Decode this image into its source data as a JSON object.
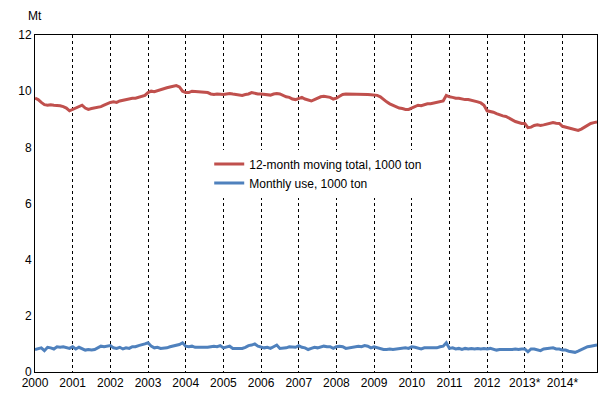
{
  "chart_data": {
    "type": "line",
    "y_label": "Mt",
    "categories": [
      "2000",
      null,
      null,
      null,
      null,
      null,
      null,
      null,
      null,
      null,
      null,
      null,
      "2001",
      null,
      null,
      null,
      null,
      null,
      null,
      null,
      null,
      null,
      null,
      null,
      "2002",
      null,
      null,
      null,
      null,
      null,
      null,
      null,
      null,
      null,
      null,
      null,
      "2003",
      null,
      null,
      null,
      null,
      null,
      null,
      null,
      null,
      null,
      null,
      null,
      "2004",
      null,
      null,
      null,
      null,
      null,
      null,
      null,
      null,
      null,
      null,
      null,
      "2005",
      null,
      null,
      null,
      null,
      null,
      null,
      null,
      null,
      null,
      null,
      null,
      "2006",
      null,
      null,
      null,
      null,
      null,
      null,
      null,
      null,
      null,
      null,
      null,
      "2007",
      null,
      null,
      null,
      null,
      null,
      null,
      null,
      null,
      null,
      null,
      null,
      "2008",
      null,
      null,
      null,
      null,
      null,
      null,
      null,
      null,
      null,
      null,
      null,
      "2009",
      null,
      null,
      null,
      null,
      null,
      null,
      null,
      null,
      null,
      null,
      null,
      "2010",
      null,
      null,
      null,
      null,
      null,
      null,
      null,
      null,
      null,
      null,
      null,
      "2011",
      null,
      null,
      null,
      null,
      null,
      null,
      null,
      null,
      null,
      null,
      null,
      "2012",
      null,
      null,
      null,
      null,
      null,
      null,
      null,
      null,
      null,
      null,
      null,
      "2013*",
      null,
      null,
      null,
      null,
      null,
      null,
      null,
      null,
      null,
      null,
      null,
      "2014*",
      null,
      null,
      null,
      null,
      null,
      null,
      null,
      null,
      null,
      null,
      null
    ],
    "series": [
      {
        "name": "12-month moving total, 1000 ton",
        "color": "#c0504d",
        "values": [
          9.75,
          9.7,
          9.6,
          9.52,
          9.5,
          9.52,
          9.5,
          9.5,
          9.48,
          9.45,
          9.4,
          9.3,
          9.35,
          9.38,
          9.45,
          9.5,
          9.4,
          9.35,
          9.38,
          9.4,
          9.42,
          9.45,
          9.5,
          9.55,
          9.6,
          9.62,
          9.6,
          9.65,
          9.68,
          9.7,
          9.72,
          9.75,
          9.75,
          9.78,
          9.8,
          9.85,
          9.95,
          10.0,
          9.98,
          10.02,
          10.05,
          10.1,
          10.12,
          10.15,
          10.18,
          10.2,
          10.15,
          10.0,
          9.95,
          9.95,
          10.0,
          9.98,
          9.98,
          9.97,
          9.96,
          9.95,
          9.9,
          9.88,
          9.9,
          9.88,
          9.88,
          9.9,
          9.92,
          9.9,
          9.88,
          9.86,
          9.85,
          9.88,
          9.9,
          9.95,
          9.92,
          9.9,
          9.9,
          9.88,
          9.88,
          9.86,
          9.9,
          9.92,
          9.9,
          9.85,
          9.8,
          9.78,
          9.72,
          9.7,
          9.75,
          9.78,
          9.72,
          9.68,
          9.65,
          9.7,
          9.75,
          9.8,
          9.82,
          9.8,
          9.78,
          9.72,
          9.75,
          9.82,
          9.88,
          9.9,
          9.9,
          9.88,
          9.88,
          9.9,
          9.9,
          9.88,
          9.88,
          9.87,
          9.86,
          9.85,
          9.8,
          9.7,
          9.62,
          9.55,
          9.5,
          9.45,
          9.4,
          9.38,
          9.35,
          9.35,
          9.4,
          9.45,
          9.5,
          9.48,
          9.52,
          9.55,
          9.55,
          9.58,
          9.6,
          9.62,
          9.65,
          9.85,
          9.8,
          9.78,
          9.75,
          9.75,
          9.72,
          9.7,
          9.7,
          9.68,
          9.65,
          9.62,
          9.58,
          9.5,
          9.3,
          9.28,
          9.25,
          9.2,
          9.15,
          9.12,
          9.1,
          9.05,
          8.98,
          8.92,
          8.88,
          8.85,
          8.85,
          8.7,
          8.72,
          8.78,
          8.8,
          8.78,
          8.8,
          8.82,
          8.85,
          8.88,
          8.86,
          8.85,
          8.75,
          8.72,
          8.68,
          8.65,
          8.62,
          8.6,
          8.65,
          8.72,
          8.8,
          8.85,
          8.88,
          8.9
        ]
      },
      {
        "name": "Monthly use, 1000 ton",
        "color": "#4f81bd",
        "values": [
          0.8,
          0.84,
          0.86,
          0.76,
          0.88,
          0.86,
          0.82,
          0.9,
          0.88,
          0.9,
          0.86,
          0.84,
          0.9,
          0.82,
          0.88,
          0.84,
          0.78,
          0.8,
          0.78,
          0.8,
          0.86,
          0.92,
          0.9,
          0.92,
          0.94,
          0.86,
          0.84,
          0.88,
          0.82,
          0.86,
          0.84,
          0.9,
          0.9,
          0.94,
          0.96,
          1.0,
          1.04,
          0.92,
          0.86,
          0.88,
          0.84,
          0.84,
          0.86,
          0.9,
          0.92,
          0.96,
          0.98,
          1.04,
          0.92,
          0.9,
          0.92,
          0.88,
          0.88,
          0.86,
          0.86,
          0.88,
          0.9,
          0.92,
          0.9,
          0.94,
          0.86,
          0.9,
          0.92,
          0.84,
          0.84,
          0.86,
          0.84,
          0.88,
          0.94,
          0.96,
          1.0,
          0.92,
          0.9,
          0.86,
          0.88,
          0.84,
          0.9,
          0.96,
          0.84,
          0.84,
          0.86,
          0.9,
          0.9,
          0.88,
          0.94,
          0.88,
          0.86,
          0.8,
          0.84,
          0.88,
          0.86,
          0.9,
          0.92,
          0.9,
          0.9,
          0.84,
          0.9,
          0.92,
          0.9,
          0.84,
          0.86,
          0.86,
          0.9,
          0.92,
          0.9,
          0.94,
          0.92,
          0.86,
          0.9,
          0.86,
          0.82,
          0.8,
          0.8,
          0.82,
          0.8,
          0.82,
          0.84,
          0.84,
          0.86,
          0.84,
          0.9,
          0.88,
          0.86,
          0.82,
          0.86,
          0.86,
          0.84,
          0.86,
          0.86,
          0.9,
          0.92,
          1.04,
          0.84,
          0.86,
          0.82,
          0.84,
          0.8,
          0.84,
          0.82,
          0.84,
          0.82,
          0.84,
          0.82,
          0.84,
          0.82,
          0.84,
          0.8,
          0.78,
          0.8,
          0.8,
          0.8,
          0.78,
          0.8,
          0.82,
          0.8,
          0.82,
          0.82,
          0.72,
          0.82,
          0.82,
          0.8,
          0.76,
          0.82,
          0.84,
          0.84,
          0.86,
          0.82,
          0.82,
          0.78,
          0.78,
          0.74,
          0.72,
          0.7,
          0.74,
          0.8,
          0.86,
          0.9,
          0.92,
          0.94,
          0.96
        ]
      }
    ],
    "ylim": [
      0,
      12
    ],
    "yticks": [
      0,
      2,
      4,
      6,
      8,
      10,
      12
    ],
    "grid": "x"
  }
}
